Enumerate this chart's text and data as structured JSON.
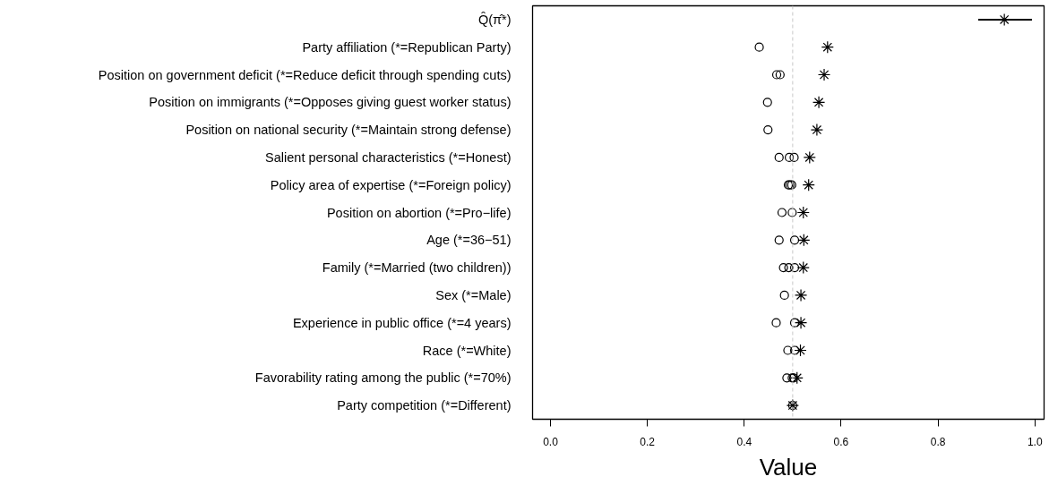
{
  "chart_data": {
    "type": "scatter",
    "orientation": "horizontal",
    "xlabel": "Value",
    "categories": [
      "Q̂(π̂*)",
      "Party affiliation (*=Republican Party)",
      "Position on government deficit (*=Reduce deficit through spending cuts)",
      "Position on immigrants (*=Opposes giving guest worker status)",
      "Position on national security (*=Maintain strong defense)",
      "Salient personal characteristics (*=Honest)",
      "Policy area of expertise (*=Foreign policy)",
      "Position on abortion (*=Pro−life)",
      "Age (*=36−51)",
      "Family (*=Married (two children))",
      "Sex (*=Male)",
      "Experience in public office (*=4 years)",
      "Race (*=White)",
      "Favorability rating among the public (*=70%)",
      "Party competition (*=Different)"
    ],
    "series": [
      {
        "color": "#000000",
        "marker": "circle",
        "values": [
          null,
          0.431,
          0.467,
          0.448,
          0.449,
          0.472,
          0.491,
          0.478,
          0.472,
          0.481,
          0.483,
          0.466,
          0.49,
          0.488,
          0.5
        ]
      },
      {
        "color": "#000000",
        "marker": "circle",
        "values": [
          null,
          null,
          0.474,
          null,
          null,
          0.493,
          0.494,
          0.499,
          0.504,
          0.492,
          null,
          0.504,
          0.504,
          0.499,
          null
        ]
      },
      {
        "color": "#000000",
        "marker": "circle",
        "values": [
          null,
          null,
          null,
          null,
          null,
          0.503,
          0.498,
          null,
          null,
          0.504,
          null,
          null,
          null,
          0.502,
          null
        ]
      },
      {
        "color": "#000000",
        "marker": "cross",
        "values": [
          0.937,
          0.572,
          0.565,
          0.554,
          0.55,
          0.535,
          0.533,
          0.522,
          0.523,
          0.522,
          0.517,
          0.517,
          0.516,
          0.509,
          0.5
        ],
        "errors": [
          [
            0.883,
            0.994
          ],
          null,
          null,
          null,
          null,
          null,
          null,
          null,
          null,
          null,
          null,
          null,
          null,
          null,
          null
        ]
      }
    ],
    "xlim": [
      -0.037,
      1.019
    ],
    "xticks": [
      {
        "value": 0,
        "label": "0.0"
      },
      {
        "value": 0.2,
        "label": "0.2"
      },
      {
        "value": 0.4,
        "label": "0.4"
      },
      {
        "value": 0.6,
        "label": "0.6"
      },
      {
        "value": 0.8,
        "label": "0.8"
      },
      {
        "value": 1,
        "label": "1.0"
      }
    ],
    "ref_lines": [
      {
        "axis": "x",
        "value": 0.5,
        "label": null,
        "color": "#c8c8c8",
        "line_style": "dashed"
      }
    ],
    "grid": false
  }
}
